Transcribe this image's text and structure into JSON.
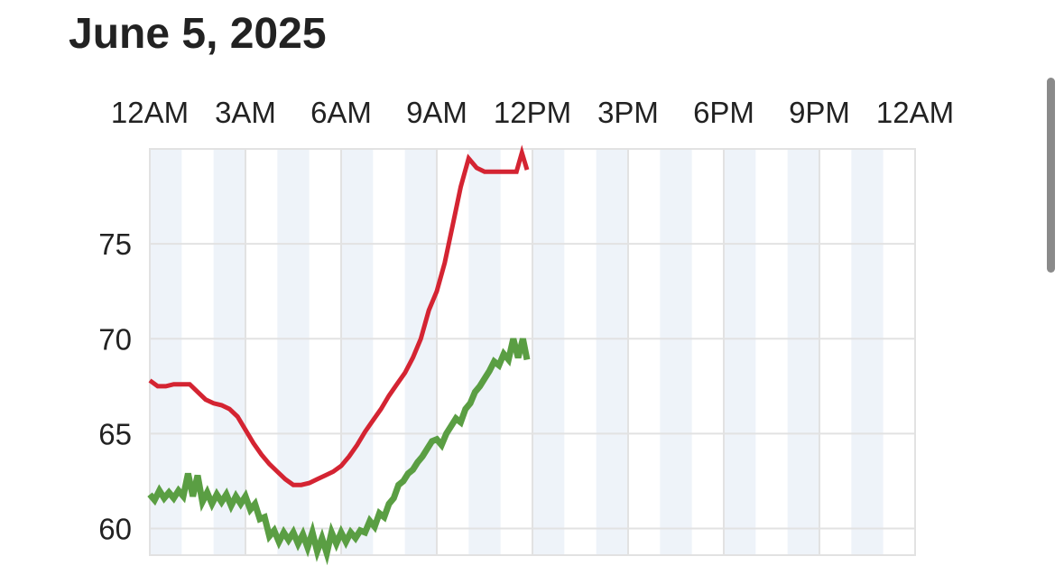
{
  "page": {
    "title": "June 5, 2025"
  },
  "colors": {
    "temperature": "#d42432",
    "dew_point": "#5a9e43",
    "alt_band": "#eef3f9",
    "grid": "#e2e2e2",
    "scrollbar": "#8a8a8a"
  },
  "chart_data": {
    "type": "line",
    "title": "June 5, 2025",
    "xlabel": "",
    "ylabel": "",
    "x_tick_labels": [
      "12AM",
      "3AM",
      "6AM",
      "9AM",
      "12PM",
      "3PM",
      "6PM",
      "9PM",
      "12AM"
    ],
    "x_axis_position": "top",
    "y_tick_labels": [
      "60",
      "65",
      "70",
      "75"
    ],
    "y_ticks": [
      60,
      65,
      70,
      75
    ],
    "ylim": [
      58.6,
      80.0
    ],
    "xlim_hours": [
      0,
      24
    ],
    "grid": true,
    "hour_bands": true,
    "series": [
      {
        "color": "#d42432",
        "x": [
          0,
          0.25,
          0.5,
          0.75,
          1,
          1.25,
          1.5,
          1.75,
          2,
          2.25,
          2.5,
          2.75,
          3,
          3.25,
          3.5,
          3.75,
          4,
          4.25,
          4.5,
          4.75,
          5,
          5.25,
          5.5,
          5.75,
          6,
          6.25,
          6.5,
          6.75,
          7,
          7.25,
          7.5,
          7.75,
          8,
          8.25,
          8.5,
          8.75,
          9,
          9.25,
          9.5,
          9.75,
          10,
          10.25,
          10.5,
          10.75,
          11,
          11.25,
          11.5,
          11.67,
          11.83
        ],
        "values": [
          67.8,
          67.5,
          67.5,
          67.6,
          67.6,
          67.6,
          67.2,
          66.8,
          66.6,
          66.5,
          66.3,
          65.9,
          65.2,
          64.5,
          63.9,
          63.4,
          63.0,
          62.6,
          62.3,
          62.3,
          62.4,
          62.6,
          62.8,
          63.0,
          63.3,
          63.8,
          64.4,
          65.1,
          65.7,
          66.3,
          67.0,
          67.6,
          68.2,
          69.0,
          70.0,
          71.5,
          72.5,
          74.0,
          76.0,
          78.0,
          79.5,
          79.0,
          78.8,
          78.8,
          78.8,
          78.8,
          78.8,
          79.8,
          78.9
        ]
      },
      {
        "color": "#5a9e43",
        "x": [
          0,
          0.15,
          0.3,
          0.45,
          0.6,
          0.75,
          0.9,
          1.05,
          1.2,
          1.35,
          1.5,
          1.65,
          1.8,
          1.95,
          2.1,
          2.25,
          2.4,
          2.55,
          2.7,
          2.85,
          3.0,
          3.15,
          3.3,
          3.45,
          3.6,
          3.75,
          3.9,
          4.05,
          4.2,
          4.35,
          4.5,
          4.65,
          4.8,
          4.95,
          5.1,
          5.25,
          5.4,
          5.55,
          5.7,
          5.85,
          6.0,
          6.15,
          6.3,
          6.45,
          6.6,
          6.75,
          6.9,
          7.05,
          7.2,
          7.35,
          7.5,
          7.65,
          7.8,
          7.95,
          8.1,
          8.25,
          8.4,
          8.55,
          8.7,
          8.85,
          9.0,
          9.15,
          9.3,
          9.45,
          9.6,
          9.75,
          9.9,
          10.05,
          10.2,
          10.35,
          10.5,
          10.65,
          10.8,
          10.95,
          11.1,
          11.25,
          11.4,
          11.55,
          11.7,
          11.83
        ],
        "values": [
          61.8,
          61.5,
          62.0,
          61.6,
          61.9,
          61.6,
          62.0,
          61.7,
          62.9,
          61.7,
          62.8,
          61.4,
          61.9,
          61.3,
          61.8,
          61.4,
          61.8,
          61.2,
          61.7,
          61.3,
          61.7,
          61.0,
          61.3,
          60.5,
          60.6,
          59.6,
          59.9,
          59.3,
          59.8,
          59.4,
          59.8,
          59.2,
          59.7,
          59.0,
          59.8,
          58.8,
          59.5,
          58.7,
          59.8,
          59.2,
          59.8,
          59.3,
          59.8,
          59.5,
          59.9,
          59.8,
          60.4,
          60.1,
          60.8,
          60.6,
          61.3,
          61.6,
          62.3,
          62.5,
          62.9,
          63.1,
          63.5,
          63.8,
          64.2,
          64.6,
          64.7,
          64.4,
          65.0,
          65.4,
          65.8,
          65.6,
          66.3,
          66.6,
          67.2,
          67.5,
          67.9,
          68.3,
          68.8,
          68.6,
          69.2,
          68.9,
          70.0,
          69.0,
          70.0,
          68.9
        ]
      }
    ]
  }
}
